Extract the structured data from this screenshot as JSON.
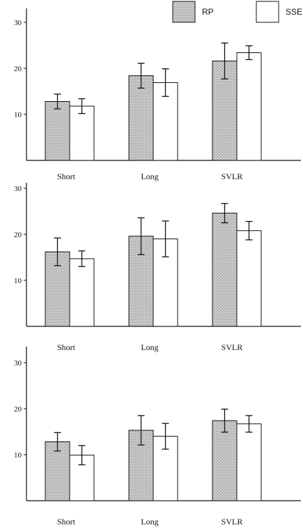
{
  "legend": {
    "entries": [
      {
        "label": "RP",
        "fill": "#b8b8b8",
        "pattern": "stipple"
      },
      {
        "label": "SSE",
        "fill": "#ffffff",
        "pattern": "none"
      }
    ]
  },
  "chart_data": [
    {
      "type": "bar",
      "categories": [
        "Short",
        "Long",
        "SVLR"
      ],
      "yticks": [
        10,
        20,
        30
      ],
      "ylim": [
        0,
        33
      ],
      "series": [
        {
          "name": "RP",
          "values": [
            12.8,
            18.4,
            21.6
          ],
          "errors": [
            1.6,
            2.7,
            3.9
          ]
        },
        {
          "name": "SSE",
          "values": [
            11.8,
            16.9,
            23.4
          ],
          "errors": [
            1.6,
            3.0,
            1.5
          ]
        }
      ]
    },
    {
      "type": "bar",
      "categories": [
        "Short",
        "Long",
        "SVLR"
      ],
      "yticks": [
        10,
        20,
        30
      ],
      "ylim": [
        0,
        30
      ],
      "series": [
        {
          "name": "RP",
          "values": [
            16.2,
            19.6,
            24.6
          ],
          "errors": [
            3.0,
            4.0,
            2.1
          ]
        },
        {
          "name": "SSE",
          "values": [
            14.7,
            19.0,
            20.8
          ],
          "errors": [
            1.7,
            3.9,
            2.0
          ]
        }
      ]
    },
    {
      "type": "bar",
      "categories": [
        "Short",
        "Long",
        "SVLR"
      ],
      "yticks": [
        10,
        20,
        30
      ],
      "ylim": [
        0,
        33
      ],
      "series": [
        {
          "name": "RP",
          "values": [
            12.8,
            15.3,
            17.4
          ],
          "errors": [
            2.0,
            3.2,
            2.5
          ]
        },
        {
          "name": "SSE",
          "values": [
            9.9,
            14.0,
            16.7
          ],
          "errors": [
            2.1,
            2.8,
            1.8
          ]
        }
      ]
    }
  ]
}
